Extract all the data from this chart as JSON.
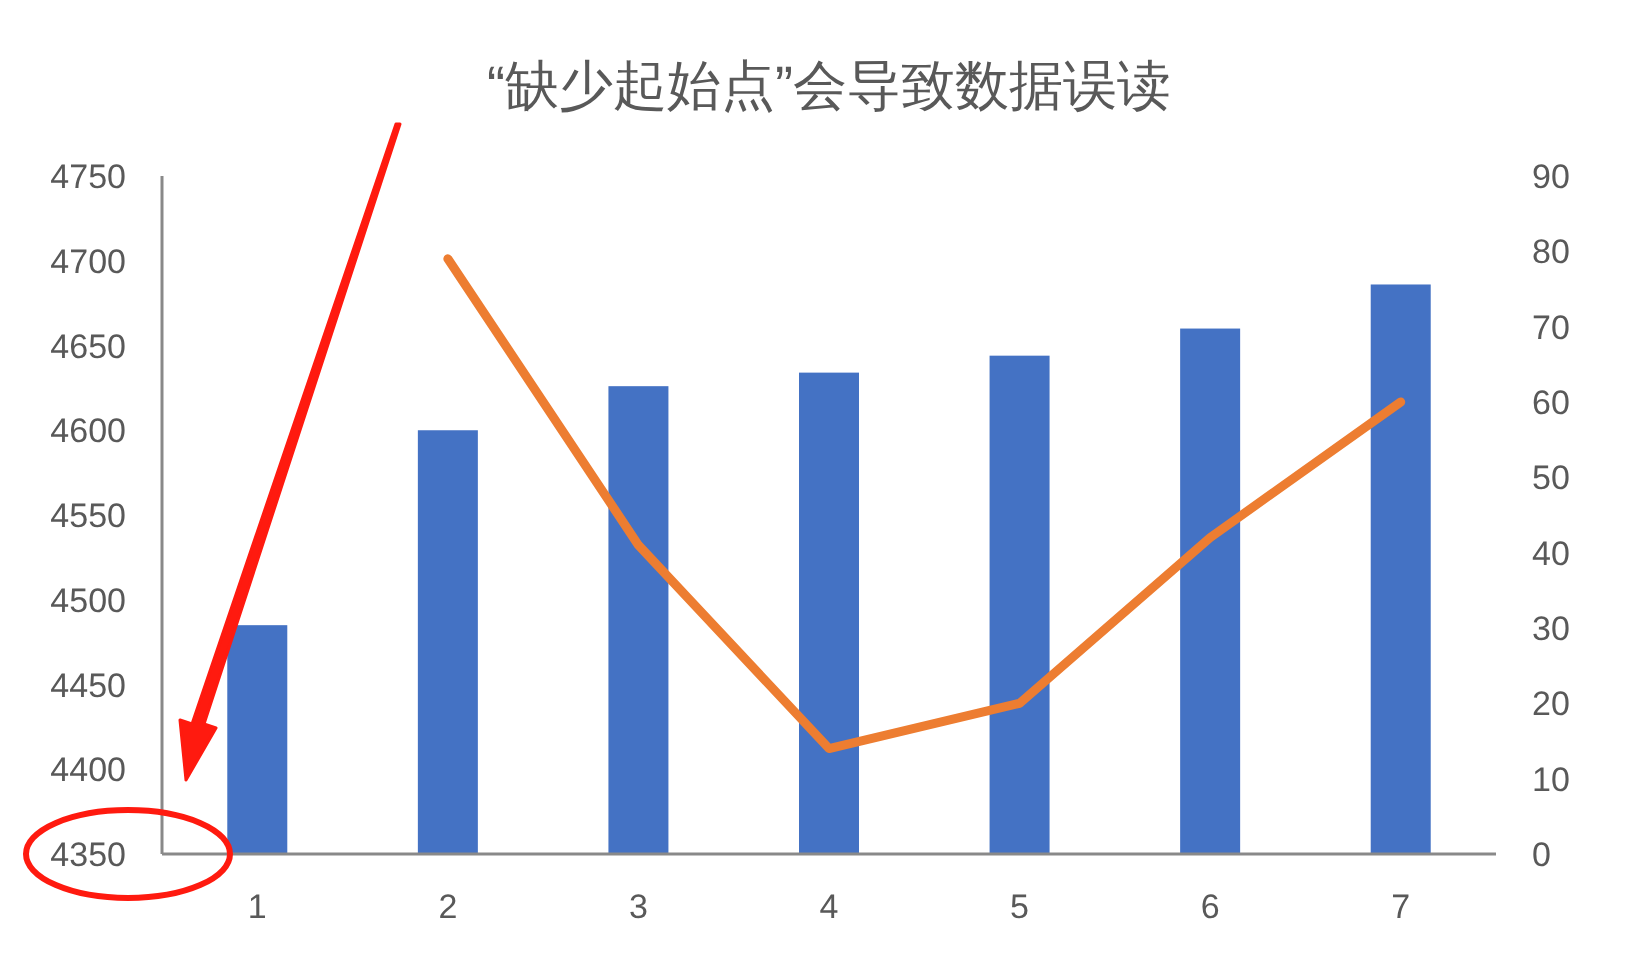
{
  "chart_data": {
    "type": "bar",
    "title": "“缺少起始点”会导致数据误读",
    "categories": [
      "1",
      "2",
      "3",
      "4",
      "5",
      "6",
      "7"
    ],
    "series": [
      {
        "color": "#4472c4",
        "values": [
          4485,
          4600,
          4626,
          4634,
          4644,
          4660,
          4686
        ]
      },
      {
        "type": "line",
        "axis": "y2",
        "color": "#ed7d31",
        "values": [
          null,
          79,
          41,
          14,
          20,
          42,
          60
        ]
      }
    ],
    "ylim": [
      4350,
      4750
    ],
    "yticks": [
      4350,
      4400,
      4450,
      4500,
      4550,
      4600,
      4650,
      4700,
      4750
    ],
    "y2lim": [
      0,
      90
    ],
    "y2ticks": [
      0,
      10,
      20,
      30,
      40,
      50,
      60,
      70,
      80,
      90
    ],
    "grid": false,
    "marker": "none",
    "line_style": "solid"
  }
}
